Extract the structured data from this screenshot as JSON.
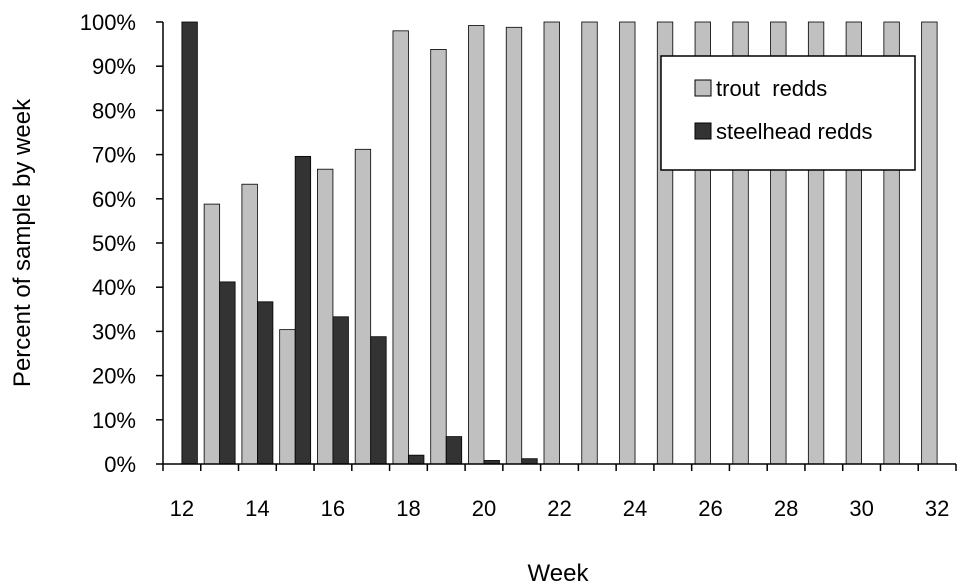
{
  "chart_data": {
    "type": "bar",
    "title": "",
    "xlabel": "Week",
    "ylabel": "Percent of sample by week",
    "ylim": [
      0,
      100
    ],
    "y_ticks": [
      "0%",
      "10%",
      "20%",
      "30%",
      "40%",
      "50%",
      "60%",
      "70%",
      "80%",
      "90%",
      "100%"
    ],
    "x_tick_labels": [
      "12",
      "14",
      "16",
      "18",
      "20",
      "22",
      "24",
      "26",
      "28",
      "30",
      "32"
    ],
    "categories": [
      12,
      13,
      14,
      15,
      16,
      17,
      18,
      19,
      20,
      21,
      22,
      23,
      24,
      25,
      26,
      27,
      28,
      29,
      30,
      31,
      32
    ],
    "series": [
      {
        "name": "trout  redds",
        "color": "#c0c0c0",
        "values": [
          0,
          58.8,
          63.3,
          30.4,
          66.7,
          71.2,
          98,
          93.8,
          99.2,
          98.8,
          100,
          100,
          100,
          100,
          100,
          100,
          100,
          100,
          100,
          100,
          100
        ]
      },
      {
        "name": "steelhead redds",
        "color": "#333333",
        "values": [
          100,
          41.2,
          36.7,
          69.6,
          33.3,
          28.8,
          2,
          6.2,
          0.8,
          1.2,
          0,
          0,
          0,
          0,
          0,
          0,
          0,
          0,
          0,
          0,
          0
        ]
      }
    ],
    "legend_position": "top-right",
    "grid": false
  }
}
